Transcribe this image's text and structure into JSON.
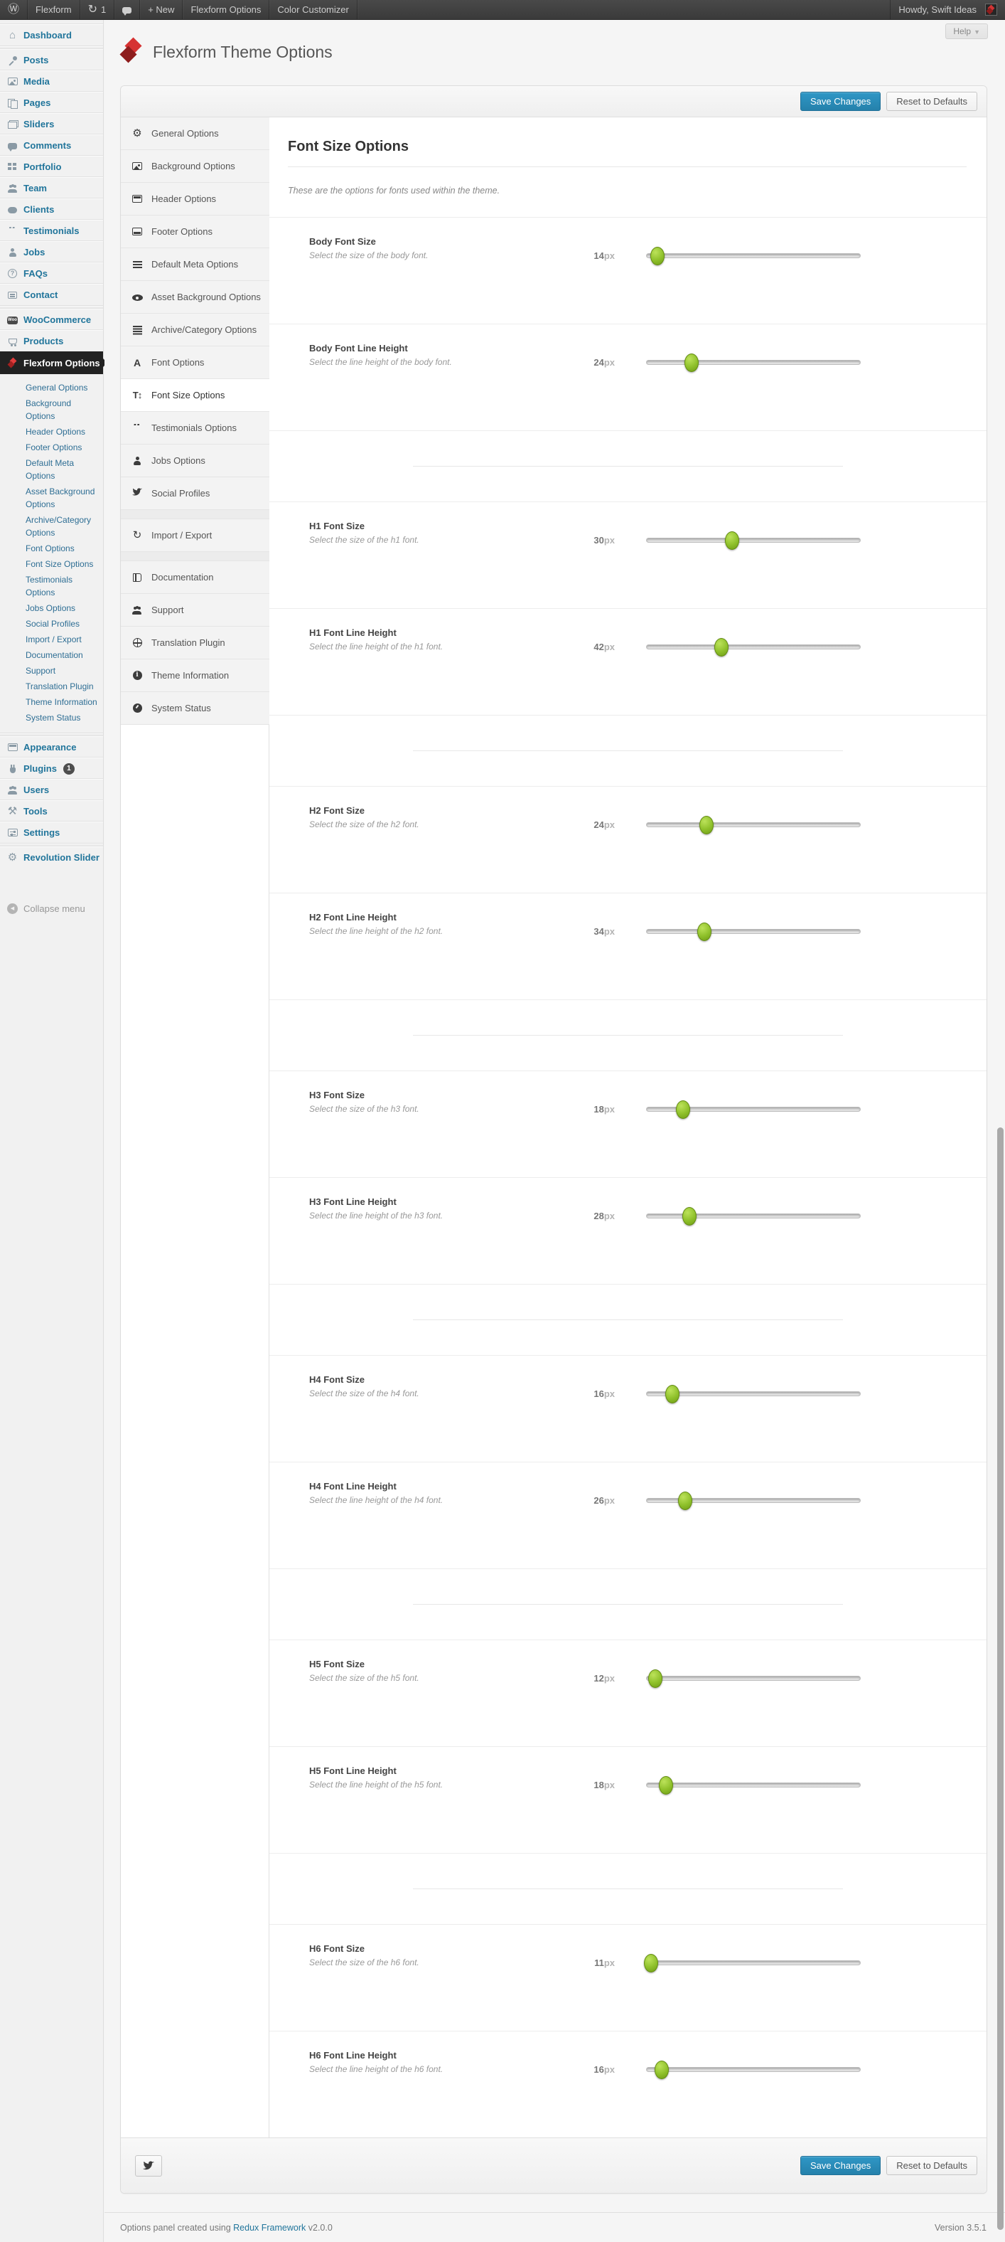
{
  "admin_bar": {
    "site_name": "Flexform",
    "updates_count": "1",
    "new_label": "+ New",
    "menu_items": [
      "Flexform Options",
      "Color Customizer"
    ],
    "howdy": "Howdy, Swift Ideas"
  },
  "sidebar": {
    "items": [
      {
        "label": "Dashboard",
        "icon": "home"
      },
      {
        "sep": true
      },
      {
        "label": "Posts",
        "icon": "pin"
      },
      {
        "label": "Media",
        "icon": "image"
      },
      {
        "label": "Pages",
        "icon": "pages"
      },
      {
        "label": "Sliders",
        "icon": "stack"
      },
      {
        "label": "Comments",
        "icon": "bubble"
      },
      {
        "label": "Portfolio",
        "icon": "grid"
      },
      {
        "label": "Team",
        "icon": "group"
      },
      {
        "label": "Clients",
        "icon": "pig"
      },
      {
        "label": "Testimonials",
        "icon": "quote"
      },
      {
        "label": "Jobs",
        "icon": "user"
      },
      {
        "label": "FAQs",
        "icon": "help"
      },
      {
        "label": "Contact",
        "icon": "card"
      },
      {
        "sep": true
      },
      {
        "label": "WooCommerce",
        "icon": "woo"
      },
      {
        "label": "Products",
        "icon": "cart"
      },
      {
        "label": "Flexform Options",
        "icon": "diamond",
        "current": true
      },
      {
        "submenu": [
          "General Options",
          "Background Options",
          "Header Options",
          "Footer Options",
          "Default Meta Options",
          "Asset Background Options",
          "Archive/Category Options",
          "Font Options",
          "Font Size Options",
          "Testimonials Options",
          "Jobs Options",
          "Social Profiles",
          "Import / Export",
          "Documentation",
          "Support",
          "Translation Plugin",
          "Theme Information",
          "System Status"
        ]
      },
      {
        "sep": true
      },
      {
        "label": "Appearance",
        "icon": "appearance"
      },
      {
        "label": "Plugins",
        "icon": "plug",
        "badge": "1"
      },
      {
        "label": "Users",
        "icon": "group"
      },
      {
        "label": "Tools",
        "icon": "tools"
      },
      {
        "label": "Settings",
        "icon": "settings"
      },
      {
        "sep": true
      },
      {
        "label": "Revolution Slider",
        "icon": "gear"
      },
      {
        "label": "Collapse menu",
        "icon": "collapse",
        "muted": true
      }
    ]
  },
  "page": {
    "title": "Flexform Theme Options",
    "help_label": "Help",
    "footer": {
      "prefix": "Options panel created using ",
      "link": "Redux Framework",
      "suffix": " v2.0.0",
      "version": "Version 3.5.1"
    }
  },
  "panel": {
    "save_label": "Save Changes",
    "reset_label": "Reset to Defaults",
    "tabs": [
      {
        "label": "General Options",
        "icon": "gear"
      },
      {
        "label": "Background Options",
        "icon": "image"
      },
      {
        "label": "Header Options",
        "icon": "header"
      },
      {
        "label": "Footer Options",
        "icon": "footer"
      },
      {
        "label": "Default Meta Options",
        "icon": "meta"
      },
      {
        "label": "Asset Background Options",
        "icon": "eye"
      },
      {
        "label": "Archive/Category Options",
        "icon": "list"
      },
      {
        "label": "Font Options",
        "icon": "font"
      },
      {
        "label": "Font Size Options",
        "icon": "fontsize",
        "active": true
      },
      {
        "label": "Testimonials Options",
        "icon": "quote"
      },
      {
        "label": "Jobs Options",
        "icon": "user"
      },
      {
        "label": "Social Profiles",
        "icon": "twitter"
      },
      {
        "divider": true
      },
      {
        "label": "Import / Export",
        "icon": "refresh"
      },
      {
        "divider": true
      },
      {
        "label": "Documentation",
        "icon": "book"
      },
      {
        "label": "Support",
        "icon": "group"
      },
      {
        "label": "Translation Plugin",
        "icon": "globe"
      },
      {
        "label": "Theme Information",
        "icon": "info"
      },
      {
        "label": "System Status",
        "icon": "gauge"
      }
    ],
    "section": {
      "title": "Font Size Options",
      "description": "These are the options for fonts used within the theme.",
      "rows": [
        {
          "label": "Body Font Size",
          "desc": "Select the size of the body font.",
          "value": "14",
          "unit": "px",
          "pct": 5
        },
        {
          "label": "Body Font Line Height",
          "desc": "Select the line height of the body font.",
          "value": "24",
          "unit": "px",
          "pct": 21
        },
        {
          "divider": true
        },
        {
          "label": "H1 Font Size",
          "desc": "Select the size of the h1 font.",
          "value": "30",
          "unit": "px",
          "pct": 40
        },
        {
          "label": "H1 Font Line Height",
          "desc": "Select the line height of the h1 font.",
          "value": "42",
          "unit": "px",
          "pct": 35
        },
        {
          "divider": true
        },
        {
          "label": "H2 Font Size",
          "desc": "Select the size of the h2 font.",
          "value": "24",
          "unit": "px",
          "pct": 28
        },
        {
          "label": "H2 Font Line Height",
          "desc": "Select the line height of the h2 font.",
          "value": "34",
          "unit": "px",
          "pct": 27
        },
        {
          "divider": true
        },
        {
          "label": "H3 Font Size",
          "desc": "Select the size of the h3 font.",
          "value": "18",
          "unit": "px",
          "pct": 17
        },
        {
          "label": "H3 Font Line Height",
          "desc": "Select the line height of the h3 font.",
          "value": "28",
          "unit": "px",
          "pct": 20
        },
        {
          "divider": true
        },
        {
          "label": "H4 Font Size",
          "desc": "Select the size of the h4 font.",
          "value": "16",
          "unit": "px",
          "pct": 12
        },
        {
          "label": "H4 Font Line Height",
          "desc": "Select the line height of the h4 font.",
          "value": "26",
          "unit": "px",
          "pct": 18
        },
        {
          "divider": true
        },
        {
          "label": "H5 Font Size",
          "desc": "Select the size of the h5 font.",
          "value": "12",
          "unit": "px",
          "pct": 4
        },
        {
          "label": "H5 Font Line Height",
          "desc": "Select the line height of the h5 font.",
          "value": "18",
          "unit": "px",
          "pct": 9
        },
        {
          "divider": true
        },
        {
          "label": "H6 Font Size",
          "desc": "Select the size of the h6 font.",
          "value": "11",
          "unit": "px",
          "pct": 2
        },
        {
          "label": "H6 Font Line Height",
          "desc": "Select the line height of the h6 font.",
          "value": "16",
          "unit": "px",
          "pct": 7
        }
      ]
    }
  },
  "colors": {
    "accent_blue": "#21759b",
    "button_blue": "#2581ab",
    "slider_green": "#8ec02a",
    "brand_red": "#cc2929"
  }
}
